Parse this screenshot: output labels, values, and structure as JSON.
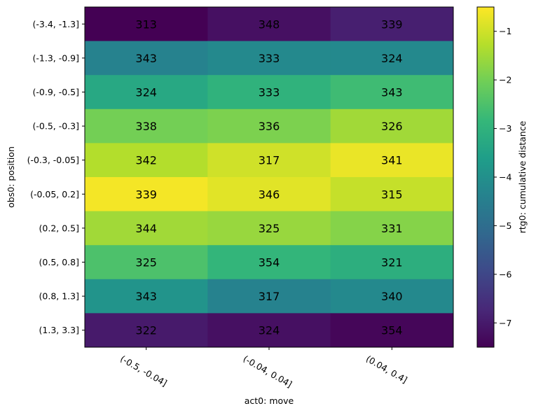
{
  "chart_data": {
    "type": "heatmap",
    "title": "",
    "xlabel": "act0: move",
    "ylabel": "obs0: position",
    "x_categories": [
      "(-0.5, -0.04]",
      "(-0.04, 0.04]",
      "(0.04, 0.4]"
    ],
    "y_categories": [
      "(-3.4, -1.3]",
      "(-1.3, -0.9]",
      "(-0.9, -0.5]",
      "(-0.5, -0.3]",
      "(-0.3, -0.05]",
      "(-0.05, 0.2]",
      "(0.2, 0.5]",
      "(0.5, 0.8]",
      "(0.8, 1.3]",
      "(1.3, 3.3]"
    ],
    "cell_labels": [
      [
        313,
        348,
        339
      ],
      [
        343,
        333,
        324
      ],
      [
        324,
        333,
        343
      ],
      [
        338,
        336,
        326
      ],
      [
        342,
        317,
        341
      ],
      [
        339,
        346,
        315
      ],
      [
        344,
        325,
        331
      ],
      [
        325,
        354,
        321
      ],
      [
        343,
        317,
        340
      ],
      [
        322,
        324,
        354
      ]
    ],
    "values": [
      [
        -7.5,
        -7.2,
        -6.9
      ],
      [
        -4.4,
        -4.2,
        -4.2
      ],
      [
        -3.3,
        -3.0,
        -2.7
      ],
      [
        -2.0,
        -1.9,
        -1.5
      ],
      [
        -1.3,
        -1.0,
        -0.7
      ],
      [
        -0.6,
        -0.8,
        -1.1
      ],
      [
        -1.5,
        -1.6,
        -1.8
      ],
      [
        -2.5,
        -2.9,
        -3.1
      ],
      [
        -3.9,
        -4.4,
        -4.2
      ],
      [
        -7.0,
        -7.2,
        -7.4
      ]
    ],
    "colorbar": {
      "label": "rtg0: cumulative distance",
      "range": [
        -7.5,
        -0.5
      ],
      "ticks": [
        -7,
        -6,
        -5,
        -4,
        -3,
        -2,
        -1
      ],
      "tick_labels": [
        "−7",
        "−6",
        "−5",
        "−4",
        "−3",
        "−2",
        "−1"
      ],
      "colormap": "viridis"
    },
    "grid": false
  }
}
